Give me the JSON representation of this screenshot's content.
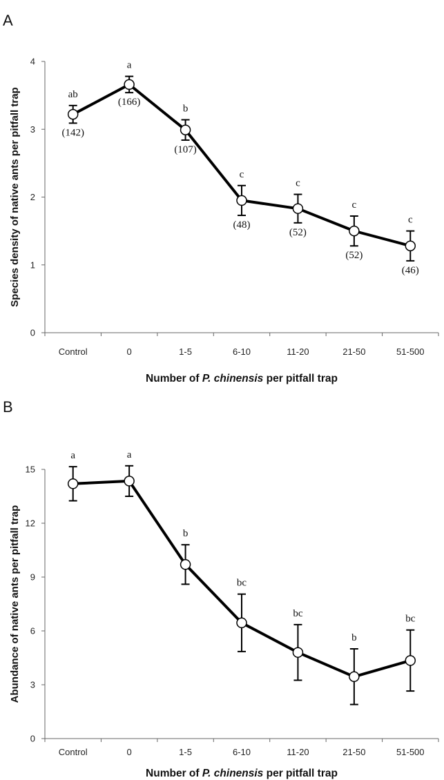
{
  "chart_data": [
    {
      "panel": "A",
      "type": "line",
      "categories": [
        "Control",
        "0",
        "1-5",
        "6-10",
        "11-20",
        "21-50",
        "51-500"
      ],
      "values": [
        3.22,
        3.66,
        2.99,
        1.95,
        1.83,
        1.5,
        1.28
      ],
      "errors": [
        0.13,
        0.12,
        0.15,
        0.22,
        0.21,
        0.22,
        0.22
      ],
      "letters": [
        "ab",
        "a",
        "b",
        "c",
        "c",
        "c",
        "c"
      ],
      "sample_sizes": [
        "(142)",
        "(166)",
        "(107)",
        "(48)",
        "(52)",
        "(52)",
        "(46)"
      ],
      "ylabel": "Species density of native ants per pitfall trap",
      "xlabel": "Number of P. chinensis per pitfall trap",
      "xlabel_parts": [
        "Number of ",
        "P. chinensis",
        " per pitfall trap"
      ],
      "ylim": [
        0,
        4
      ],
      "yticks": [
        0,
        1,
        2,
        3,
        4
      ],
      "grid": false,
      "legend": "none"
    },
    {
      "panel": "B",
      "type": "line",
      "categories": [
        "Control",
        "0",
        "1-5",
        "6-10",
        "11-20",
        "21-50",
        "51-500"
      ],
      "values": [
        14.2,
        14.35,
        9.7,
        6.45,
        4.8,
        3.45,
        4.35
      ],
      "errors": [
        0.95,
        0.85,
        1.1,
        1.6,
        1.55,
        1.55,
        1.7
      ],
      "letters": [
        "a",
        "a",
        "b",
        "bc",
        "bc",
        "b",
        "bc"
      ],
      "ylabel": "Abundance of native ants per pitfall trap",
      "xlabel": "Number of P. chinensis per pitfall trap",
      "xlabel_parts": [
        "Number of ",
        "P. chinensis",
        " per pitfall trap"
      ],
      "ylim": [
        0,
        15
      ],
      "yticks": [
        0,
        3,
        6,
        9,
        12,
        15
      ],
      "grid": false,
      "legend": "none"
    }
  ]
}
